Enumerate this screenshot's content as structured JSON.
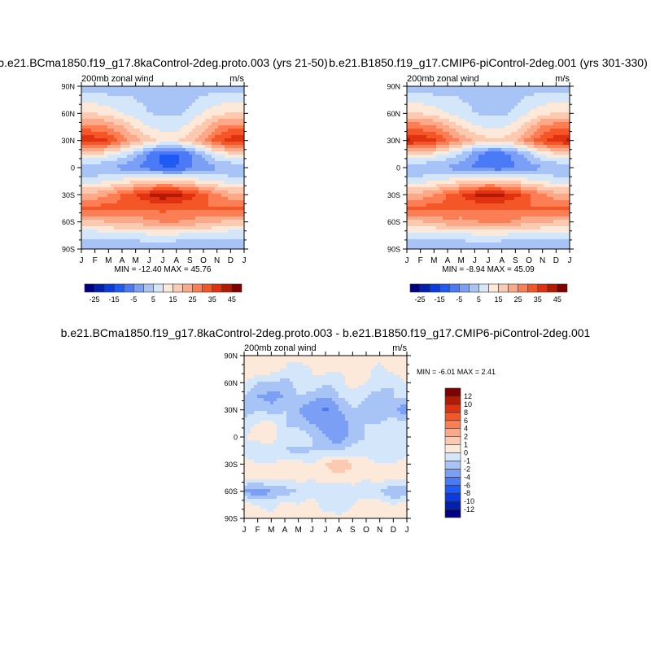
{
  "palette": [
    "#000080",
    "#0020b0",
    "#0a3ae0",
    "#1f5af5",
    "#4a7af5",
    "#7a9ff5",
    "#a8c3f5",
    "#d4e6fa",
    "#fde9d9",
    "#fcc9b1",
    "#fca98a",
    "#fb7e55",
    "#f55628",
    "#e03210",
    "#b41a02",
    "#800000"
  ],
  "chart_data": [
    {
      "type": "heatmap",
      "title": "b.e21.BCma1850.f19_g17.8kaControl-2deg.proto.003 (yrs 21-50)",
      "left_label": "200mb zonal wind",
      "right_label": "m/s",
      "stats": "MIN = -12.40 MAX =  45.76",
      "x_ticks": [
        "J",
        "F",
        "M",
        "A",
        "M",
        "J",
        "J",
        "A",
        "S",
        "O",
        "N",
        "D",
        "J"
      ],
      "y_ticks": [
        "90N",
        "60N",
        "30N",
        "0",
        "30S",
        "60S",
        "90S"
      ],
      "lats": [
        90,
        75,
        60,
        45,
        30,
        15,
        0,
        -15,
        -30,
        -45,
        -60,
        -75,
        -90
      ],
      "levels": [
        -25,
        -20,
        -15,
        -10,
        -5,
        0,
        5,
        10,
        15,
        20,
        25,
        30,
        35,
        40,
        45
      ],
      "colorbar_labels": [
        "-25",
        "-15",
        "-5",
        "5",
        "15",
        "25",
        "35",
        "45"
      ],
      "values": [
        [
          2,
          2,
          2,
          3,
          4,
          3,
          2,
          2,
          3,
          3,
          2,
          2,
          2
        ],
        [
          8,
          8,
          7,
          6,
          5,
          4,
          3,
          3,
          4,
          6,
          8,
          8,
          8
        ],
        [
          15,
          15,
          13,
          10,
          7,
          5,
          4,
          4,
          6,
          10,
          14,
          15,
          15
        ],
        [
          28,
          27,
          25,
          20,
          14,
          10,
          8,
          8,
          12,
          18,
          25,
          28,
          28
        ],
        [
          40,
          38,
          35,
          28,
          22,
          17,
          14,
          14,
          18,
          25,
          33,
          38,
          40
        ],
        [
          15,
          15,
          12,
          8,
          2,
          -6,
          -12,
          -12,
          -6,
          2,
          10,
          14,
          15
        ],
        [
          0,
          0,
          0,
          -2,
          -4,
          -8,
          -10,
          -10,
          -6,
          -3,
          -1,
          0,
          0
        ],
        [
          8,
          8,
          10,
          12,
          14,
          15,
          18,
          16,
          14,
          12,
          10,
          8,
          8
        ],
        [
          22,
          22,
          25,
          30,
          35,
          40,
          44,
          42,
          38,
          32,
          26,
          22,
          22
        ],
        [
          32,
          32,
          32,
          32,
          30,
          30,
          32,
          30,
          30,
          30,
          30,
          32,
          32
        ],
        [
          18,
          18,
          20,
          22,
          22,
          24,
          25,
          25,
          24,
          22,
          20,
          18,
          18
        ],
        [
          6,
          6,
          7,
          8,
          8,
          9,
          9,
          9,
          8,
          8,
          7,
          6,
          6
        ],
        [
          0,
          0,
          0,
          0,
          0,
          0,
          -1,
          -1,
          0,
          0,
          0,
          0,
          0
        ]
      ]
    },
    {
      "type": "heatmap",
      "title": "b.e21.B1850.f19_g17.CMIP6-piControl-2deg.001 (yrs 301-330)",
      "left_label": "200mb zonal wind",
      "right_label": "m/s",
      "stats": "MIN = -8.94 MAX =  45.09",
      "x_ticks": [
        "J",
        "F",
        "M",
        "A",
        "M",
        "J",
        "J",
        "A",
        "S",
        "O",
        "N",
        "D",
        "J"
      ],
      "y_ticks": [
        "90N",
        "60N",
        "30N",
        "0",
        "30S",
        "60S",
        "90S"
      ],
      "lats": [
        90,
        75,
        60,
        45,
        30,
        15,
        0,
        -15,
        -30,
        -45,
        -60,
        -75,
        -90
      ],
      "levels": [
        -25,
        -20,
        -15,
        -10,
        -5,
        0,
        5,
        10,
        15,
        20,
        25,
        30,
        35,
        40,
        45
      ],
      "colorbar_labels": [
        "-25",
        "-15",
        "-5",
        "5",
        "15",
        "25",
        "35",
        "45"
      ],
      "values": [
        [
          2,
          2,
          2,
          3,
          4,
          3,
          2,
          2,
          3,
          3,
          2,
          2,
          2
        ],
        [
          8,
          8,
          7,
          6,
          5,
          4,
          3,
          3,
          4,
          6,
          8,
          8,
          8
        ],
        [
          15,
          15,
          13,
          10,
          7,
          5,
          4,
          4,
          6,
          10,
          14,
          15,
          15
        ],
        [
          29,
          28,
          26,
          21,
          15,
          11,
          9,
          9,
          13,
          19,
          26,
          29,
          29
        ],
        [
          41,
          39,
          36,
          30,
          24,
          19,
          16,
          16,
          20,
          27,
          34,
          39,
          41
        ],
        [
          15,
          15,
          13,
          9,
          4,
          -3,
          -8,
          -8,
          -3,
          3,
          11,
          14,
          15
        ],
        [
          0,
          0,
          0,
          -1,
          -3,
          -6,
          -8,
          -8,
          -5,
          -2,
          -1,
          0,
          0
        ],
        [
          8,
          8,
          10,
          12,
          14,
          15,
          18,
          16,
          14,
          12,
          10,
          8,
          8
        ],
        [
          22,
          22,
          25,
          30,
          35,
          40,
          43,
          41,
          37,
          31,
          26,
          22,
          22
        ],
        [
          32,
          32,
          32,
          32,
          30,
          30,
          31,
          30,
          30,
          30,
          30,
          32,
          32
        ],
        [
          19,
          19,
          21,
          23,
          23,
          24,
          26,
          26,
          24,
          22,
          21,
          19,
          19
        ],
        [
          6,
          6,
          7,
          8,
          8,
          9,
          9,
          9,
          8,
          8,
          7,
          6,
          6
        ],
        [
          0,
          0,
          0,
          0,
          0,
          0,
          -1,
          -1,
          0,
          0,
          0,
          0,
          0
        ]
      ]
    },
    {
      "type": "heatmap",
      "title": "b.e21.BCma1850.f19_g17.8kaControl-2deg.proto.003 - b.e21.B1850.f19_g17.CMIP6-piControl-2deg.001",
      "left_label": "200mb zonal wind",
      "right_label": "m/s",
      "stats": "MIN =  -6.01 MAX =   2.41",
      "x_ticks": [
        "J",
        "F",
        "M",
        "A",
        "M",
        "J",
        "J",
        "A",
        "S",
        "O",
        "N",
        "D",
        "J"
      ],
      "y_ticks": [
        "90N",
        "60N",
        "30N",
        "0",
        "30S",
        "60S",
        "90S"
      ],
      "lats": [
        90,
        75,
        60,
        45,
        30,
        15,
        0,
        -15,
        -30,
        -45,
        -60,
        -75,
        -90
      ],
      "levels": [
        -12,
        -10,
        -8,
        -6,
        -4,
        -2,
        -1,
        0,
        1,
        2,
        4,
        6,
        8,
        10,
        12
      ],
      "colorbar_labels": [
        "-12",
        "-10",
        "-8",
        "-6",
        "-4",
        "-2",
        "-1",
        "0",
        "1",
        "2",
        "4",
        "6",
        "8",
        "10",
        "12"
      ],
      "values": [
        [
          0.5,
          0.5,
          0.5,
          0,
          0.5,
          0.5,
          0,
          0.5,
          0.5,
          0,
          0.5,
          0.5,
          0.5
        ],
        [
          0.5,
          1,
          0.5,
          0,
          -0.5,
          0,
          0.5,
          0,
          0.5,
          0.5,
          -0.5,
          0.5,
          0.5
        ],
        [
          0,
          -1,
          -1,
          -1.5,
          -0.5,
          0,
          -1,
          -0.5,
          0.5,
          0,
          -0.5,
          -1,
          0
        ],
        [
          -1,
          -2,
          -2.5,
          -2,
          -1,
          -1.5,
          -2,
          -1,
          -0.5,
          -1,
          -1.5,
          -1,
          -1
        ],
        [
          -1.5,
          -1,
          -1.5,
          -1,
          -2,
          -3,
          -4.5,
          -2,
          -1,
          -1.5,
          -2,
          -1.5,
          -3
        ],
        [
          -0.5,
          0,
          0.5,
          -1,
          -1.5,
          -2,
          -2.5,
          -3,
          -1.5,
          -1,
          -1,
          -0.5,
          -0.5
        ],
        [
          0,
          0.5,
          0.5,
          -0.5,
          0,
          -1,
          -2,
          -3,
          -1.5,
          -1,
          -0.5,
          0,
          0
        ],
        [
          -0.5,
          -1,
          -0.5,
          -1,
          -1.5,
          -1,
          -1,
          -1,
          -0.5,
          -0.5,
          -1,
          -1,
          -0.5
        ],
        [
          0.5,
          0,
          0,
          0.5,
          0.5,
          0,
          1,
          2,
          1,
          0.5,
          0,
          0,
          0.5
        ],
        [
          0,
          0.5,
          0.5,
          0,
          0.5,
          0,
          0.5,
          0.5,
          0.5,
          0,
          0.5,
          0,
          0
        ],
        [
          -2,
          -3,
          -2,
          -1.5,
          -1,
          -0.5,
          -0.5,
          -1,
          -0.5,
          -0.5,
          -1,
          -2,
          -2
        ],
        [
          0.5,
          0,
          -0.5,
          0.5,
          0,
          0.5,
          -0.5,
          -1,
          0,
          0.5,
          0.5,
          0,
          0.5
        ],
        [
          0.5,
          0.5,
          0.5,
          0.5,
          0.5,
          0.5,
          0.5,
          0.5,
          0.5,
          0.5,
          0.5,
          0.5,
          0.5
        ]
      ]
    }
  ]
}
